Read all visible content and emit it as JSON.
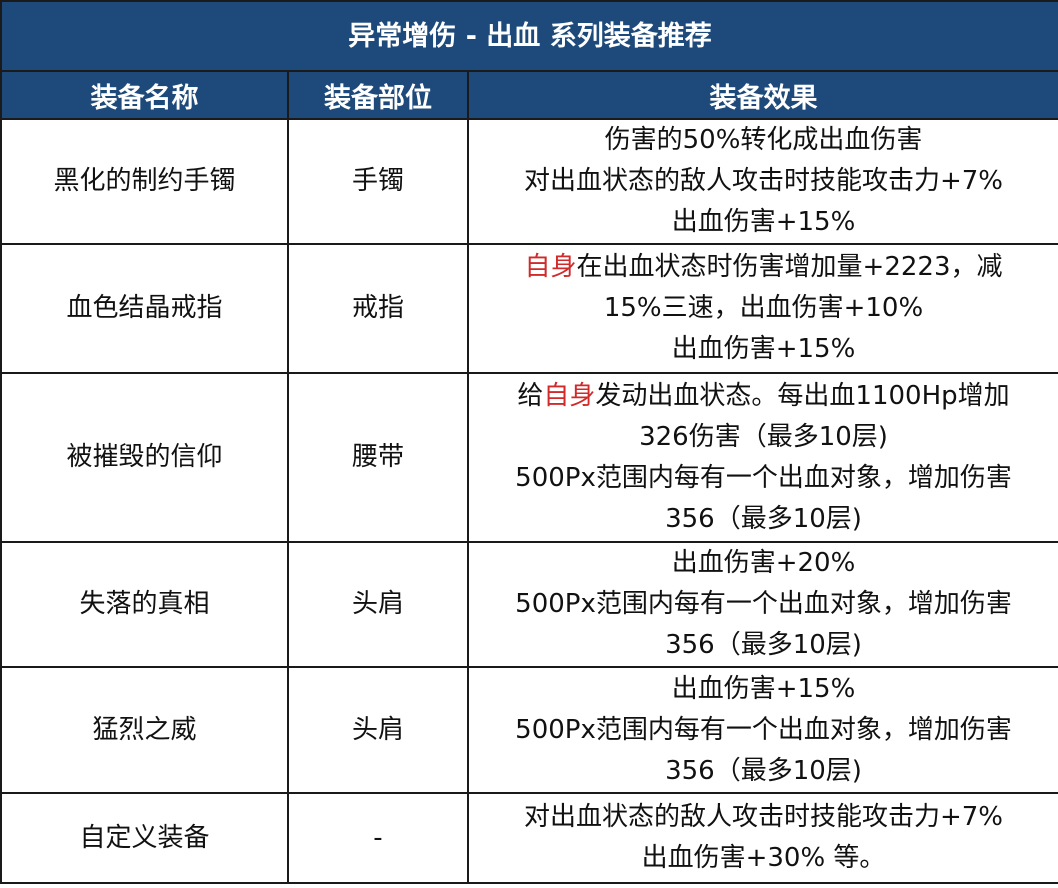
{
  "title": "异常增伤 - 出血 系列装备推荐",
  "headers": [
    "装备名称",
    "装备部位",
    "装备效果"
  ],
  "colors": {
    "header_bg": "#1d4a7a",
    "highlight": "#d12a2a"
  },
  "rows": [
    {
      "name": "黑化的制约手镯",
      "slot": "手镯",
      "effects": [
        [
          {
            "t": "伤害的50%转化成出血伤害"
          }
        ],
        [
          {
            "t": "对出血状态的敌人攻击时技能攻击力+7%"
          }
        ],
        [
          {
            "t": "出血伤害+15%"
          }
        ]
      ]
    },
    {
      "name": "血色结晶戒指",
      "slot": "戒指",
      "effects": [
        [
          {
            "t": "自身",
            "red": true
          },
          {
            "t": "在出血状态时伤害增加量+2223，减"
          }
        ],
        [
          {
            "t": "15%三速，出血伤害+10%"
          }
        ],
        [
          {
            "t": "出血伤害+15%"
          }
        ]
      ]
    },
    {
      "name": "被摧毁的信仰",
      "slot": "腰带",
      "effects": [
        [
          {
            "t": "给"
          },
          {
            "t": "自身",
            "red": true
          },
          {
            "t": "发动出血状态。每出血1100Hp增加"
          }
        ],
        [
          {
            "t": "326伤害（最多10层)"
          }
        ],
        [
          {
            "t": "500Px范围内每有一个出血对象，增加伤害"
          }
        ],
        [
          {
            "t": "356（最多10层)"
          }
        ]
      ]
    },
    {
      "name": "失落的真相",
      "slot": "头肩",
      "effects": [
        [
          {
            "t": "出血伤害+20%"
          }
        ],
        [
          {
            "t": "500Px范围内每有一个出血对象，增加伤害"
          }
        ],
        [
          {
            "t": "356（最多10层)"
          }
        ]
      ]
    },
    {
      "name": "猛烈之威",
      "slot": "头肩",
      "effects": [
        [
          {
            "t": "出血伤害+15%"
          }
        ],
        [
          {
            "t": "500Px范围内每有一个出血对象，增加伤害"
          }
        ],
        [
          {
            "t": "356（最多10层)"
          }
        ]
      ]
    },
    {
      "name": "自定义装备",
      "slot": "-",
      "effects": [
        [
          {
            "t": "对出血状态的敌人攻击时技能攻击力+7%"
          }
        ],
        [
          {
            "t": "出血伤害+30% 等。"
          }
        ]
      ]
    }
  ]
}
